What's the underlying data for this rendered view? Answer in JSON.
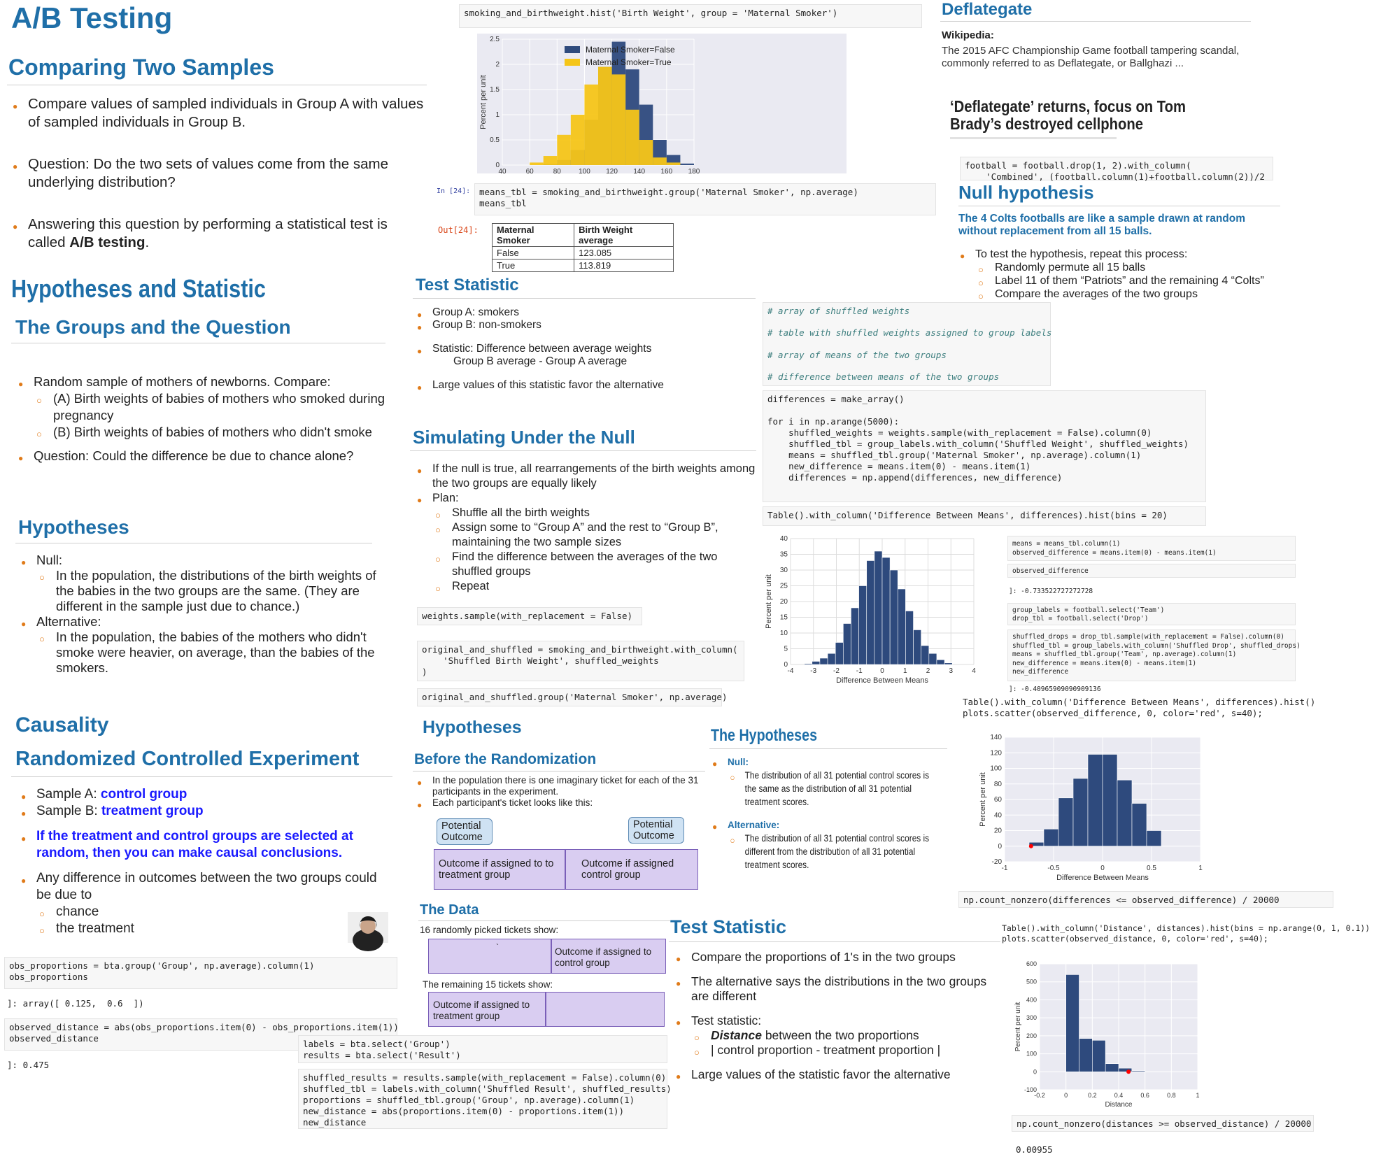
{
  "ab": {
    "title": "A/B Testing",
    "section": "Comparing Two Samples",
    "bullets": [
      "Compare values of sampled individuals in Group A with values of sampled individuals in Group B.",
      "Question: Do the two sets of values come from the same underlying distribution?",
      "Answering this question by performing a statistical test is called "
    ],
    "bold_term": "A/B testing",
    "bold_suffix": "."
  },
  "hyp_stat": {
    "title": "Hypotheses and Statistic",
    "groups_title": "The Groups and the Question",
    "b1": "Random sample of mothers of newborns. Compare:",
    "s1": "(A) Birth weights of babies of mothers who smoked during pregnancy",
    "s2": "(B) Birth weights of babies of mothers who didn't smoke",
    "b2": "Question: Could the difference be due to chance alone?",
    "hyp_title": "Hypotheses",
    "null_label": "Null:",
    "null_text": "In the population, the distributions of the birth weights of the babies in the two groups are the same. (They are different in the sample just due to chance.)",
    "alt_label": "Alternative:",
    "alt_text": "In the population, the babies of the mothers who didn't smoke were heavier, on average, than the babies of the smokers."
  },
  "causality": {
    "title": "Causality",
    "rce_title": "Randomized Controlled Experiment",
    "sample_a": "Sample A: ",
    "sample_a_hl": "control group",
    "sample_b": "Sample B: ",
    "sample_b_hl": "treatment group",
    "emphasis": "If the treatment and control groups are selected at random, then you can make causal conclusions.",
    "diff_text": "Any difference in outcomes between the two groups could be due to",
    "sub1": "chance",
    "sub2": "the treatment"
  },
  "bta_code": {
    "c1": "obs_proportions = bta.group('Group', np.average).column(1)\nobs_proportions",
    "o1": "]: array([ 0.125,  0.6  ])",
    "c2": "observed_distance = abs(obs_proportions.item(0) - obs_proportions.item(1))\nobserved_distance",
    "o2": "]: 0.475",
    "c3": "labels = bta.select('Group')\nresults = bta.select('Result')",
    "c4": "shuffled_results = results.sample(with_replacement = False).column(0)\nshuffled_tbl = labels.with_column('Shuffled Result', shuffled_results)\nproportions = shuffled_tbl.group('Group', np.average).column(1)\nnew_distance = abs(proportions.item(0) - proportions.item(1))\nnew_distance"
  },
  "hist_code": "smoking_and_birthweight.hist('Birth Weight', group = 'Maternal Smoker')",
  "means": {
    "prompt_in": "In [24]:",
    "code": "means_tbl = smoking_and_birthweight.group('Maternal Smoker', np.average)\nmeans_tbl",
    "prompt_out": "Out[24]:",
    "headers": [
      "Maternal Smoker",
      "Birth Weight average"
    ],
    "rows": [
      [
        "False",
        "123.085"
      ],
      [
        "True",
        "113.819"
      ]
    ]
  },
  "test_stat": {
    "title": "Test Statistic",
    "g_a": "Group A: smokers",
    "g_b": "Group B: non-smokers",
    "stat": "Statistic: Difference between average weights",
    "stat2": "Group B average - Group A average",
    "large": "Large values of this statistic favor the alternative"
  },
  "sim": {
    "title": "Simulating Under the Null",
    "b1": "If the null is true, all rearrangements of the birth weights among the two groups are equally likely",
    "b2": "Plan:",
    "s1": "Shuffle all the birth weights",
    "s2": "Assign some to “Group A” and the rest to “Group B”, maintaining the two sample sizes",
    "s3": "Find the difference between the averages of the two shuffled groups",
    "s4": "Repeat",
    "code1": "weights.sample(with_replacement = False)",
    "code2": "original_and_shuffled = smoking_and_birthweight.with_column(\n    'Shuffled Birth Weight', shuffled_weights\n)",
    "code3": "original_and_shuffled.group('Maternal Smoker', np.average)"
  },
  "rand": {
    "hyp_title": "Hypotheses",
    "before_title": "Before the Randomization",
    "b1": "In the population there is one imaginary ticket for each of the 31 participants in the experiment.",
    "b2": "Each participant's ticket looks like this:",
    "callout1": "Potential Outcome",
    "callout2": "Potential Outcome",
    "cell1": "Outcome if assigned to to treatment group",
    "cell2": "Outcome if assigned control group",
    "data_title": "The Data",
    "d1": "16 randomly picked tickets show:",
    "d1_cell": "Outcome if assigned to control group",
    "d1_mark": "`",
    "d2": "The remaining 15 tickets show:",
    "d2_cell": "Outcome if assigned to treatment group"
  },
  "the_hyp": {
    "title": "The Hypotheses",
    "null_label": "Null:",
    "null_text": "The distribution of all 31 potential control scores is the same as the distribution of all 31 potential treatment scores.",
    "alt_label": "Alternative:",
    "alt_text": "The distribution of all 31 potential control scores is different from the distribution of all 31 potential treatment scores."
  },
  "ts2": {
    "title": "Test Statistic",
    "b1": "Compare the proportions of 1's in the two groups",
    "b2": "The alternative says the distributions in the two groups are different",
    "b3": "Test statistic:",
    "s1_bold": "Distance",
    "s1_rest": " between the two proportions",
    "s2": "| control proportion - treatment proportion |",
    "b4": "Large values of the statistic favor the alternative"
  },
  "deflate": {
    "title": "Deflategate",
    "wiki_label": "Wikipedia:",
    "wiki_text": "The 2015 AFC Championship Game football tampering scandal, commonly referred to as Deflategate, or Ballghazi ...",
    "headline": "‘Deflategate’ returns, focus on Tom Brady’s destroyed cellphone",
    "code": "football = football.drop(1, 2).with_column(\n    'Combined', (football.column(1)+football.column(2))/2",
    "null_title": "Null hypothesis",
    "null_text": "The 4 Colts footballs are like a sample drawn at random without replacement from all 15 balls.",
    "b1": "To test the hypothesis, repeat this process:",
    "s1": "Randomly permute all 15 balls",
    "s2": "Label 11 of them “Patriots” and the remaining 4 “Colts”",
    "s3": "Compare the averages of the two groups"
  },
  "sim_code": {
    "comments": [
      "# array of shuffled weights",
      "# table with shuffled weights assigned to group labels",
      "# array of means of the two groups",
      "# difference between means of the two groups"
    ],
    "loop": "differences = make_array()\n\nfor i in np.arange(5000):\n    shuffled_weights = weights.sample(with_replacement = False).column(0)\n    shuffled_tbl = group_labels.with_column('Shuffled Weight', shuffled_weights)\n    means = shuffled_tbl.group('Maternal Smoker', np.average).column(1)\n    new_difference = means.item(0) - means.item(1)\n    differences = np.append(differences, new_difference)",
    "hist": "Table().with_column('Difference Between Means', differences).hist(bins = 20)"
  },
  "fb_code": {
    "c1": "means = means_tbl.column(1)\nobserved_difference = means.item(0) - means.item(1)",
    "c2": "observed_difference",
    "o2": "]: -0.733522727272728",
    "c3": "group_labels = football.select('Team')\ndrop_tbl = football.select('Drop')",
    "c4": "shuffled_drops = drop_tbl.sample(with_replacement = False).column(0)\nshuffled_tbl = group_labels.with_column('Shuffled Drop', shuffled_drops)\nmeans = shuffled_tbl.group('Team', np.average).column(1)\nnew_difference = means.item(0) - means.item(1)\nnew_difference",
    "o4": "]: -0.40965909090909136",
    "c5": "Table().with_column('Difference Between Means', differences).hist()\nplots.scatter(observed_difference, 0, color='red', s=40);",
    "c6": "np.count_nonzero(differences <= observed_difference) / 20000",
    "c7": "Table().with_column('Distance', distances).hist(bins = np.arange(0, 1, 0.1))\nplots.scatter(observed_distance, 0, color='red', s=40);",
    "c8": "np.count_nonzero(distances >= observed_distance) / 20000",
    "o8": "0.00955"
  },
  "colors": {
    "title_blue": "#1f6fa8",
    "bullet_orange": "#e07b1a",
    "bar_blue": "#2e4a7d",
    "bar_gold": "#f5c518",
    "highlight_blue": "#1a1aff"
  },
  "chart_data": [
    {
      "type": "bar",
      "xlabel": "",
      "ylabel": "Percent per unit",
      "x_ticks": [
        40,
        60,
        80,
        100,
        120,
        140,
        160,
        180
      ],
      "y_ticks": [
        0,
        0.5,
        1,
        1.5,
        2,
        2.5
      ],
      "ylim": [
        0,
        2.5
      ],
      "bin_edges": [
        40,
        50,
        60,
        70,
        80,
        90,
        100,
        110,
        120,
        130,
        140,
        150,
        160,
        170,
        180
      ],
      "series": [
        {
          "name": "Maternal Smoker=False",
          "color": "#2e4a7d",
          "values": [
            0,
            0,
            0,
            0.02,
            0.1,
            0.3,
            0.9,
            1.95,
            2.45,
            1.9,
            1.2,
            0.5,
            0.2,
            0.03
          ]
        },
        {
          "name": "Maternal Smoker=True",
          "color": "#f5c518",
          "values": [
            0,
            0,
            0.05,
            0.18,
            0.6,
            1.0,
            1.6,
            1.95,
            1.8,
            1.1,
            0.5,
            0.15,
            0.05,
            0
          ]
        }
      ],
      "legend": "top-right"
    },
    {
      "type": "bar",
      "xlabel": "Difference Between Means",
      "ylabel": "Percent per unit",
      "x_ticks": [
        -4,
        -3,
        -2,
        -1,
        0,
        1,
        2,
        3,
        4
      ],
      "y_ticks": [
        0,
        5,
        10,
        15,
        20,
        25,
        30,
        35,
        40
      ],
      "ylim": [
        0,
        40
      ],
      "bin_edges": [
        -3.4,
        -3.06,
        -2.72,
        -2.38,
        -2.04,
        -1.7,
        -1.36,
        -1.02,
        -0.68,
        -0.34,
        0,
        0.34,
        0.68,
        1.02,
        1.36,
        1.7,
        2.04,
        2.38,
        2.72,
        3.06
      ],
      "values": [
        0.3,
        1,
        2,
        3.5,
        7,
        13,
        18,
        25,
        33,
        36,
        34,
        30,
        24,
        17,
        11,
        6,
        3.5,
        1.5,
        0.5
      ]
    },
    {
      "type": "bar",
      "xlabel": "Difference Between Means",
      "ylabel": "Percent per unit",
      "x_ticks": [
        -1.0,
        -0.5,
        0.0,
        0.5,
        1.0
      ],
      "y_ticks": [
        -20,
        0,
        20,
        40,
        60,
        80,
        100,
        120,
        140
      ],
      "ylim": [
        -20,
        140
      ],
      "bin_edges": [
        -0.75,
        -0.6,
        -0.45,
        -0.3,
        -0.15,
        0,
        0.15,
        0.3,
        0.45,
        0.6
      ],
      "values": [
        5,
        22,
        62,
        87,
        118,
        118,
        85,
        55,
        20
      ],
      "marker": {
        "x": -0.73,
        "y": 0
      }
    },
    {
      "type": "bar",
      "xlabel": "Distance",
      "ylabel": "Percent per unit",
      "x_ticks": [
        -0.2,
        0.0,
        0.2,
        0.4,
        0.6,
        0.8,
        1.0
      ],
      "y_ticks": [
        -100,
        0,
        100,
        200,
        300,
        400,
        500,
        600
      ],
      "ylim": [
        -100,
        600
      ],
      "bin_edges": [
        0,
        0.1,
        0.2,
        0.3,
        0.4,
        0.5,
        0.6
      ],
      "values": [
        540,
        185,
        175,
        45,
        20,
        5
      ],
      "marker": {
        "x": 0.475,
        "y": 0
      }
    }
  ]
}
